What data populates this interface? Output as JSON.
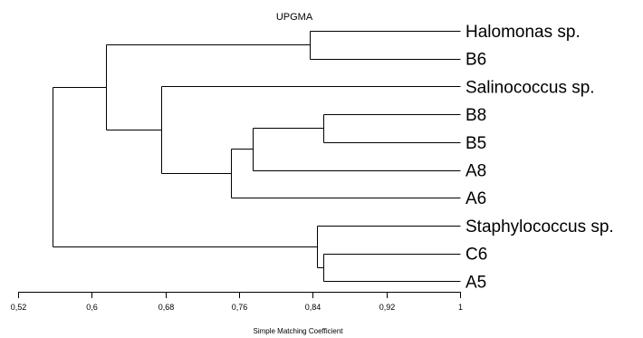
{
  "title": "UPGMA",
  "axis": {
    "label": "Simple Matching Coefficient",
    "min": 0.52,
    "max": 1,
    "ticks": [
      {
        "value": 0.52,
        "label": "0,52"
      },
      {
        "value": 0.6,
        "label": "0,6"
      },
      {
        "value": 0.68,
        "label": "0,68"
      },
      {
        "value": 0.76,
        "label": "0,76"
      },
      {
        "value": 0.84,
        "label": "0,84"
      },
      {
        "value": 0.92,
        "label": "0,92"
      },
      {
        "value": 1,
        "label": "1"
      }
    ]
  },
  "leaves": [
    "Halomonas sp.",
    "B6",
    "Salinococcus sp.",
    "B8",
    "B5",
    "A8",
    "A6",
    "Staphylococcus sp.",
    "C6",
    "A5"
  ],
  "clusters": [
    {
      "left": 0,
      "right": 1,
      "similarity": 0.837
    },
    {
      "left": 3,
      "right": 4,
      "similarity": 0.851
    },
    {
      "left": 11,
      "right": 5,
      "similarity": 0.775
    },
    {
      "left": 12,
      "right": 6,
      "similarity": 0.751
    },
    {
      "left": 2,
      "right": 13,
      "similarity": 0.675
    },
    {
      "left": 10,
      "right": 14,
      "similarity": 0.615
    },
    {
      "left": 8,
      "right": 9,
      "similarity": 0.851
    },
    {
      "left": 7,
      "right": 16,
      "similarity": 0.845
    },
    {
      "left": 15,
      "right": 17,
      "similarity": 0.557
    }
  ]
}
